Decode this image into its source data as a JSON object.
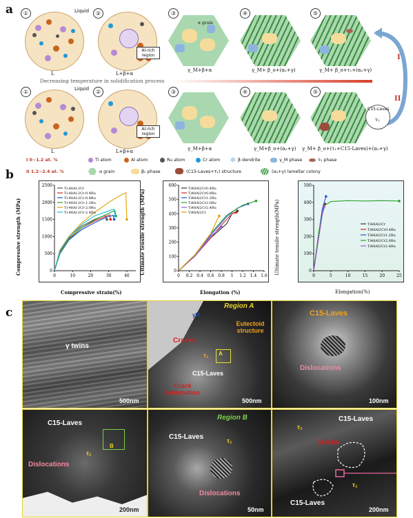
{
  "panels": {
    "a": "a",
    "b": "b",
    "c": "c"
  },
  "schematic": {
    "step_numbers": [
      "①",
      "②",
      "③",
      "④",
      "⑤"
    ],
    "row1_captions": [
      "L",
      "L+β+α",
      "γ_M+β+α",
      "γ_M+ β_o+(α₂+γ)",
      "γ_M+ β_o+τ₁+(α₂+γ)"
    ],
    "row2_captions": [
      "L",
      "L+β+α",
      "γ_M+β+α",
      "γ_M+β_o+(α₂+γ)",
      "γ_M+ β_o+(τ₁+C15-Laves)+(α₂+γ)"
    ],
    "liquid_label": "Liquid",
    "al_rich_label": "Al-rich region",
    "alpha_grain": "α grain",
    "decreasing_text": "Decreasing temperature in solidification process",
    "route_I": "I",
    "route_II": "II",
    "c15_bubble": "C15-Laves",
    "tau_bubble": "τ₁",
    "beta": "β",
    "betao": "βₒ",
    "alpha2": "α₂",
    "gammaM": "γM",
    "alpha_small": "α"
  },
  "legend": {
    "range1": "I   0~1.2 at. %",
    "range2": "II  1.2~2.4 at. %",
    "items": [
      {
        "label": "Ti atom",
        "color": "#b58ad6"
      },
      {
        "label": "Al atom",
        "color": "#c8641e"
      },
      {
        "label": "Ru atom",
        "color": "#555555"
      },
      {
        "label": "Cr atom",
        "color": "#1f9bd7"
      },
      {
        "label": "β dendrite",
        "color": "#7fb0d8"
      },
      {
        "label": "γ_M phase",
        "color": "#8eb4de"
      },
      {
        "label": "τ₁ phase",
        "color": "#a8625a"
      },
      {
        "label": "α grain",
        "color": "#a9d8b0"
      },
      {
        "label": "β₀ phase",
        "color": "#f5dc9a"
      },
      {
        "label": "(C15-Laves+τ₁) structure",
        "color": "#9a4d3a"
      },
      {
        "label": "(α₂+γ) lamellar colony",
        "color": "#3a8a3a"
      }
    ]
  },
  "chart_data": [
    {
      "type": "line",
      "ylabel": "Compressive strength (MPa)",
      "xlabel": "Compressive strain(%)",
      "xlim": [
        0,
        45
      ],
      "ylim": [
        0,
        2500
      ],
      "xticks": [
        0,
        10,
        20,
        30,
        40
      ],
      "yticks": [
        0,
        500,
        1000,
        1500,
        2000,
        2500
      ],
      "legend_position": "top-left",
      "series": [
        {
          "name": "Ti-48Al-2Cr",
          "color": "#555555",
          "points": [
            [
              0,
              0
            ],
            [
              3,
              600
            ],
            [
              8,
              1000
            ],
            [
              15,
              1300
            ],
            [
              22,
              1500
            ],
            [
              28,
              1620
            ],
            [
              29,
              1500
            ]
          ]
        },
        {
          "name": "Ti-48Al-2Cr-0.4Ru",
          "color": "#d62728",
          "points": [
            [
              0,
              0
            ],
            [
              3,
              550
            ],
            [
              8,
              950
            ],
            [
              15,
              1250
            ],
            [
              22,
              1450
            ],
            [
              29,
              1600
            ],
            [
              30.5,
              1640
            ],
            [
              31,
              1500
            ]
          ]
        },
        {
          "name": "Ti-48Al-2Cr-0.8Ru",
          "color": "#1f4fd6",
          "points": [
            [
              0,
              0
            ],
            [
              3,
              500
            ],
            [
              8,
              900
            ],
            [
              15,
              1200
            ],
            [
              22,
              1400
            ],
            [
              29,
              1570
            ],
            [
              32.5,
              1620
            ],
            [
              33,
              1500
            ]
          ]
        },
        {
          "name": "Ti-48Al-2Cr-1.2Ru",
          "color": "#2ca02c",
          "points": [
            [
              0,
              0
            ],
            [
              3,
              520
            ],
            [
              8,
              920
            ],
            [
              15,
              1250
            ],
            [
              22,
              1480
            ],
            [
              30,
              1680
            ],
            [
              33.5,
              1760
            ],
            [
              34,
              1600
            ]
          ]
        },
        {
          "name": "Ti-48Al-2Cr-2.0Ru",
          "color": "#e0a000",
          "points": [
            [
              0,
              0
            ],
            [
              3,
              600
            ],
            [
              8,
              1000
            ],
            [
              15,
              1400
            ],
            [
              22,
              1700
            ],
            [
              30,
              2000
            ],
            [
              38,
              2250
            ],
            [
              39.5,
              2280
            ],
            [
              40,
              1500
            ]
          ]
        },
        {
          "name": "Ti-48Al-2Cr-2.4Ru",
          "color": "#17becf",
          "points": [
            [
              0,
              0
            ],
            [
              3,
              580
            ],
            [
              8,
              980
            ],
            [
              15,
              1350
            ],
            [
              22,
              1600
            ],
            [
              30,
              1750
            ],
            [
              33,
              1800
            ],
            [
              33.5,
              1600
            ]
          ]
        }
      ]
    },
    {
      "type": "line",
      "ylabel": "Ultimate tensile strength (MPa)",
      "xlabel": "Elongation (%)",
      "xlim": [
        0,
        1.6
      ],
      "ylim": [
        0,
        600
      ],
      "xticks": [
        0.0,
        0.2,
        0.4,
        0.6,
        0.8,
        1.0,
        1.2,
        1.4,
        1.6
      ],
      "yticks": [
        0,
        100,
        200,
        300,
        400,
        500,
        600
      ],
      "legend_position": "top-left",
      "series": [
        {
          "name": "Ti48Al2Cr0.4Ru",
          "color": "#333333",
          "points": [
            [
              0,
              0
            ],
            [
              0.3,
              100
            ],
            [
              0.6,
              230
            ],
            [
              0.9,
              330
            ],
            [
              1.0,
              400
            ],
            [
              1.1,
              420
            ]
          ]
        },
        {
          "name": "Ti48Al2Cr0.8Ru",
          "color": "#d62728",
          "points": [
            [
              0,
              0
            ],
            [
              0.3,
              100
            ],
            [
              0.6,
              230
            ],
            [
              0.8,
              320
            ],
            [
              1.0,
              400
            ],
            [
              1.08,
              410
            ]
          ]
        },
        {
          "name": "Ti48Al2Cr1.2Ru",
          "color": "#1f4fd6",
          "points": [
            [
              0,
              0
            ],
            [
              0.3,
              110
            ],
            [
              0.6,
              250
            ],
            [
              0.9,
              380
            ],
            [
              1.1,
              440
            ],
            [
              1.3,
              470
            ]
          ]
        },
        {
          "name": "Ti48Al2Cr2.0Ru",
          "color": "#2ca02c",
          "points": [
            [
              0,
              0
            ],
            [
              0.3,
              110
            ],
            [
              0.6,
              260
            ],
            [
              0.9,
              390
            ],
            [
              1.2,
              460
            ],
            [
              1.45,
              490
            ]
          ]
        },
        {
          "name": "Ti48Al2Cr2.4Ru",
          "color": "#9b59d6",
          "points": [
            [
              0,
              0
            ],
            [
              0.3,
              100
            ],
            [
              0.6,
              240
            ],
            [
              0.78,
              300
            ],
            [
              0.8,
              310
            ]
          ]
        },
        {
          "name": "Ti48Al2Cr",
          "color": "#e0a000",
          "points": [
            [
              0,
              0
            ],
            [
              0.3,
              110
            ],
            [
              0.6,
              260
            ],
            [
              0.75,
              380
            ],
            [
              0.76,
              385
            ]
          ]
        }
      ]
    },
    {
      "type": "line",
      "ylabel": "Ultimate tensile strength(MPa)",
      "xlabel": "Elongation(%)",
      "xlim": [
        0,
        25
      ],
      "ylim": [
        0,
        500
      ],
      "xticks": [
        0,
        5,
        10,
        15,
        20,
        25
      ],
      "yticks": [
        0,
        100,
        200,
        300,
        400,
        500
      ],
      "legend_position": "center-right",
      "series": [
        {
          "name": "Ti48Al2Cr",
          "color": "#333333",
          "points": [
            [
              0,
              0
            ],
            [
              1.5,
              200
            ],
            [
              2.5,
              330
            ],
            [
              3.2,
              380
            ],
            [
              3.3,
              390
            ]
          ]
        },
        {
          "name": "Ti48Al2Cr0.4Ru",
          "color": "#d62728",
          "points": [
            [
              0,
              0
            ],
            [
              1.5,
              200
            ],
            [
              2.5,
              330
            ],
            [
              3.0,
              380
            ],
            [
              3.1,
              385
            ]
          ]
        },
        {
          "name": "Ti48Al2Cr1.2Ru",
          "color": "#1f4fd6",
          "points": [
            [
              0,
              0
            ],
            [
              1.5,
              220
            ],
            [
              2.5,
              360
            ],
            [
              3.5,
              430
            ],
            [
              3.6,
              435
            ]
          ]
        },
        {
          "name": "Ti48Al2Cr2.0Ru",
          "color": "#2ca02c",
          "points": [
            [
              0,
              0
            ],
            [
              1.5,
              230
            ],
            [
              3,
              380
            ],
            [
              5,
              405
            ],
            [
              10,
              410
            ],
            [
              15,
              408
            ],
            [
              20,
              410
            ],
            [
              25,
              408
            ]
          ]
        },
        {
          "name": "Ti48Al2Cr2.4Ru",
          "color": "#9b59d6",
          "points": [
            [
              0,
              0
            ],
            [
              1.5,
              200
            ],
            [
              2.5,
              330
            ],
            [
              2.9,
              370
            ],
            [
              3.0,
              372
            ]
          ]
        }
      ]
    }
  ],
  "micrographs": {
    "p1": {
      "label": "γ twins",
      "scale": "500nm"
    },
    "p2": {
      "region": "Region A",
      "gm": "γM",
      "eutectoid": "Eutectoid structure",
      "cracks": "Cracks",
      "tau": "τ₁",
      "c15": "C15-Laves",
      "crack_term": "Crack termination",
      "box": "A",
      "scale": "500nm"
    },
    "p3": {
      "c15": "C15-Laves",
      "disl": "Dislocations",
      "scale": "100nm"
    },
    "p4": {
      "c15": "C15-Laves",
      "tau": "τ₁",
      "box": "B",
      "disl": "Dislocations",
      "scale": "200nm"
    },
    "p5": {
      "region": "Region B",
      "c15": "C15-Laves",
      "tau": "τ₁",
      "disl": "Dislocations",
      "scale": "50nm"
    },
    "p6": {
      "c15a": "C15-Laves",
      "tau_top": "τ₁",
      "cracks": "Cracks",
      "c15b": "C15-Laves",
      "tau_bottom": "τ₁",
      "scale": "200nm"
    }
  }
}
